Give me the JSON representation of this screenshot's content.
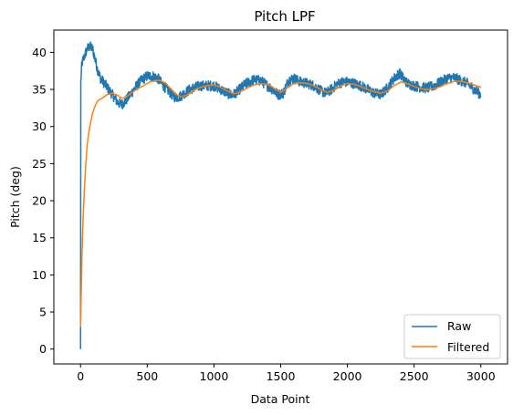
{
  "chart_data": {
    "type": "line",
    "title": "Pitch LPF",
    "xlabel": "Data Point",
    "ylabel": "Pitch (deg)",
    "xlim": [
      -200,
      3200
    ],
    "ylim": [
      -2,
      43
    ],
    "xticks": [
      0,
      500,
      1000,
      1500,
      2000,
      2500,
      3000
    ],
    "yticks": [
      0,
      5,
      10,
      15,
      20,
      25,
      30,
      35,
      40
    ],
    "grid": false,
    "legend_position": "lower-right",
    "series": [
      {
        "name": "Raw",
        "color": "#1f77b4",
        "noise_amplitude": 0.7,
        "points": [
          [
            0,
            0
          ],
          [
            2,
            36
          ],
          [
            10,
            38.5
          ],
          [
            30,
            39.5
          ],
          [
            50,
            40.5
          ],
          [
            70,
            40.8
          ],
          [
            90,
            40.5
          ],
          [
            110,
            39
          ],
          [
            130,
            37.5
          ],
          [
            150,
            36.5
          ],
          [
            180,
            35.8
          ],
          [
            210,
            35
          ],
          [
            250,
            34
          ],
          [
            280,
            33.2
          ],
          [
            310,
            33
          ],
          [
            340,
            33.5
          ],
          [
            380,
            34.5
          ],
          [
            420,
            35.5
          ],
          [
            460,
            36.3
          ],
          [
            500,
            36.8
          ],
          [
            540,
            36.8
          ],
          [
            580,
            36.5
          ],
          [
            620,
            35.5
          ],
          [
            660,
            34.8
          ],
          [
            700,
            34
          ],
          [
            740,
            34
          ],
          [
            780,
            34.5
          ],
          [
            820,
            35
          ],
          [
            860,
            35.3
          ],
          [
            900,
            35.5
          ],
          [
            950,
            35.5
          ],
          [
            1000,
            35.5
          ],
          [
            1050,
            35
          ],
          [
            1100,
            34.5
          ],
          [
            1140,
            34.2
          ],
          [
            1180,
            34.8
          ],
          [
            1220,
            35.5
          ],
          [
            1260,
            36
          ],
          [
            1300,
            36.3
          ],
          [
            1350,
            36.2
          ],
          [
            1400,
            35.5
          ],
          [
            1440,
            35
          ],
          [
            1480,
            34.3
          ],
          [
            1520,
            34.5
          ],
          [
            1560,
            36.3
          ],
          [
            1600,
            36.5
          ],
          [
            1650,
            36
          ],
          [
            1700,
            35.8
          ],
          [
            1750,
            35.5
          ],
          [
            1800,
            34.8
          ],
          [
            1840,
            34.5
          ],
          [
            1880,
            35
          ],
          [
            1920,
            35.7
          ],
          [
            1960,
            36
          ],
          [
            2000,
            36
          ],
          [
            2050,
            35.8
          ],
          [
            2100,
            35.5
          ],
          [
            2150,
            35
          ],
          [
            2200,
            34.5
          ],
          [
            2250,
            34.3
          ],
          [
            2300,
            35.2
          ],
          [
            2350,
            36.5
          ],
          [
            2390,
            37.2
          ],
          [
            2420,
            36.5
          ],
          [
            2450,
            35.8
          ],
          [
            2500,
            35.5
          ],
          [
            2550,
            35.3
          ],
          [
            2600,
            35.2
          ],
          [
            2650,
            35.5
          ],
          [
            2700,
            36
          ],
          [
            2750,
            36.5
          ],
          [
            2800,
            36.6
          ],
          [
            2850,
            36.2
          ],
          [
            2900,
            35.8
          ],
          [
            2950,
            35
          ],
          [
            3000,
            34.3
          ]
        ]
      },
      {
        "name": "Filtered",
        "color": "#ff7f0e",
        "noise_amplitude": 0,
        "points": [
          [
            0,
            3
          ],
          [
            10,
            12
          ],
          [
            20,
            18
          ],
          [
            30,
            22
          ],
          [
            40,
            25
          ],
          [
            50,
            27.5
          ],
          [
            60,
            29
          ],
          [
            75,
            30.5
          ],
          [
            90,
            31.8
          ],
          [
            110,
            32.8
          ],
          [
            130,
            33.5
          ],
          [
            160,
            33.8
          ],
          [
            200,
            34.3
          ],
          [
            240,
            34.5
          ],
          [
            280,
            34.2
          ],
          [
            310,
            33.8
          ],
          [
            340,
            34
          ],
          [
            380,
            34.5
          ],
          [
            420,
            35
          ],
          [
            470,
            35.5
          ],
          [
            520,
            36
          ],
          [
            560,
            36.2
          ],
          [
            600,
            36.2
          ],
          [
            640,
            35.8
          ],
          [
            680,
            35
          ],
          [
            720,
            34.3
          ],
          [
            760,
            34
          ],
          [
            800,
            34.3
          ],
          [
            850,
            34.9
          ],
          [
            900,
            35.3
          ],
          [
            950,
            35.5
          ],
          [
            1000,
            35.6
          ],
          [
            1050,
            35.3
          ],
          [
            1100,
            34.8
          ],
          [
            1150,
            34.4
          ],
          [
            1200,
            34.7
          ],
          [
            1250,
            35.2
          ],
          [
            1300,
            35.6
          ],
          [
            1350,
            35.8
          ],
          [
            1400,
            35.7
          ],
          [
            1450,
            35.2
          ],
          [
            1500,
            34.6
          ],
          [
            1550,
            35.2
          ],
          [
            1600,
            35.8
          ],
          [
            1650,
            35.9
          ],
          [
            1700,
            35.8
          ],
          [
            1750,
            35.5
          ],
          [
            1800,
            35.0
          ],
          [
            1850,
            34.6
          ],
          [
            1900,
            34.9
          ],
          [
            1950,
            35.5
          ],
          [
            2000,
            35.8
          ],
          [
            2050,
            35.7
          ],
          [
            2100,
            35.4
          ],
          [
            2150,
            35.0
          ],
          [
            2200,
            34.7
          ],
          [
            2250,
            34.5
          ],
          [
            2300,
            34.8
          ],
          [
            2350,
            35.5
          ],
          [
            2400,
            36
          ],
          [
            2450,
            35.8
          ],
          [
            2500,
            35.4
          ],
          [
            2550,
            35.1
          ],
          [
            2600,
            35
          ],
          [
            2650,
            35.1
          ],
          [
            2700,
            35.4
          ],
          [
            2750,
            35.8
          ],
          [
            2800,
            36.1
          ],
          [
            2850,
            36.1
          ],
          [
            2900,
            35.9
          ],
          [
            2950,
            35.6
          ],
          [
            3000,
            35.3
          ]
        ]
      }
    ]
  }
}
